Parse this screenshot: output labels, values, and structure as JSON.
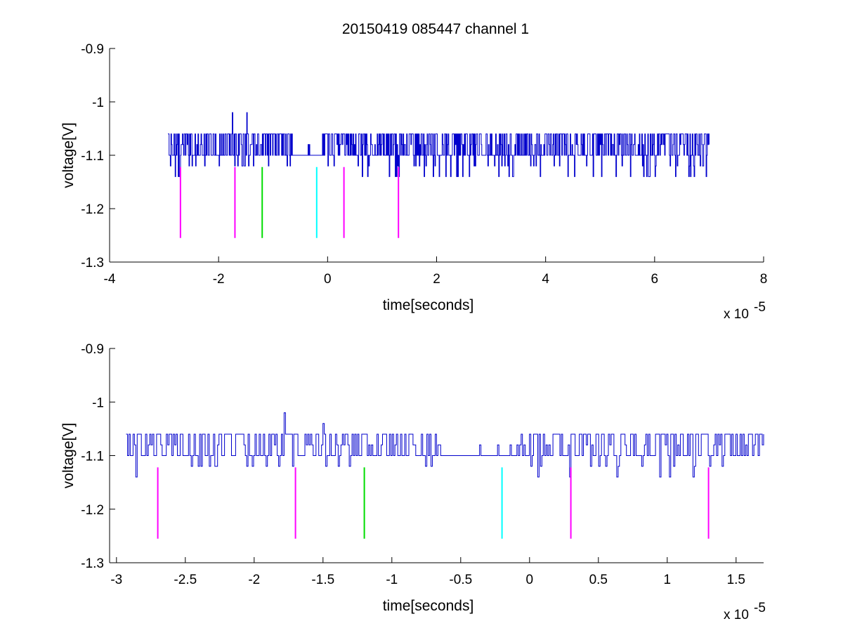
{
  "figure": {
    "title": "20150419 085447 channel 1"
  },
  "chart_data": [
    {
      "type": "line",
      "xlabel": "time[seconds]",
      "ylabel": "voltage[V]",
      "x_multiplier_label": "x 10",
      "x_multiplier_exp": "-5",
      "xlim": [
        -4,
        8
      ],
      "ylim": [
        -1.3,
        -0.9
      ],
      "xticks": [
        -4,
        -2,
        0,
        2,
        4,
        6,
        8
      ],
      "xtick_labels": [
        "-4",
        "-2",
        "0",
        "2",
        "4",
        "6",
        "8"
      ],
      "yticks": [
        -1.3,
        -1.2,
        -1.1,
        -1.0,
        -0.9
      ],
      "ytick_labels": [
        "-1.3",
        "-1.2",
        "-1.1",
        "-1",
        "-0.9"
      ],
      "grid": false,
      "series": [
        {
          "color": "#0000cc",
          "x_range": [
            -2.93,
            7.0
          ],
          "levels": [
            -1.14,
            -1.12,
            -1.1,
            -1.08,
            -1.06
          ],
          "description_levels": "digitized noise trace toggling mostly between -1.1 and -1.06 with occasional dips to -1.14",
          "spikes": [
            {
              "x": -1.75,
              "y": -1.02
            },
            {
              "x": -1.48,
              "y": -1.02
            }
          ]
        }
      ],
      "markers": [
        {
          "x": -2.7,
          "y_top": -1.122,
          "y_bottom": -1.255,
          "color": "#ff00ff"
        },
        {
          "x": -1.7,
          "y_top": -1.122,
          "y_bottom": -1.255,
          "color": "#ff00ff"
        },
        {
          "x": -1.2,
          "y_top": -1.122,
          "y_bottom": -1.255,
          "color": "#00dd00"
        },
        {
          "x": -0.2,
          "y_top": -1.122,
          "y_bottom": -1.255,
          "color": "#00ffff"
        },
        {
          "x": 0.3,
          "y_top": -1.122,
          "y_bottom": -1.255,
          "color": "#ff00ff"
        },
        {
          "x": 1.3,
          "y_top": -1.122,
          "y_bottom": -1.255,
          "color": "#ff00ff"
        }
      ]
    },
    {
      "type": "line",
      "xlabel": "time[seconds]",
      "ylabel": "voltage[V]",
      "x_multiplier_label": "x 10",
      "x_multiplier_exp": "-5",
      "xlim": [
        -3.05,
        1.7
      ],
      "ylim": [
        -1.3,
        -0.9
      ],
      "xticks": [
        -3,
        -2.5,
        -2,
        -1.5,
        -1,
        -0.5,
        0,
        0.5,
        1,
        1.5
      ],
      "xtick_labels": [
        "-3",
        "-2.5",
        "-2",
        "-1.5",
        "-1",
        "-0.5",
        "0",
        "0.5",
        "1",
        "1.5"
      ],
      "yticks": [
        -1.3,
        -1.2,
        -1.1,
        -1.0,
        -0.9
      ],
      "ytick_labels": [
        "-1.3",
        "-1.2",
        "-1.1",
        "-1",
        "-0.9"
      ],
      "grid": false,
      "series": [
        {
          "color": "#0000cc",
          "x_range": [
            -2.93,
            1.7
          ],
          "levels": [
            -1.14,
            -1.12,
            -1.1,
            -1.08,
            -1.06
          ],
          "description_levels": "zoomed view of the same trace",
          "spikes": [
            {
              "x": -1.78,
              "y": -1.02
            },
            {
              "x": -1.5,
              "y": -1.04
            }
          ]
        }
      ],
      "markers": [
        {
          "x": -2.7,
          "y_top": -1.122,
          "y_bottom": -1.255,
          "color": "#ff00ff"
        },
        {
          "x": -1.7,
          "y_top": -1.122,
          "y_bottom": -1.255,
          "color": "#ff00ff"
        },
        {
          "x": -1.2,
          "y_top": -1.122,
          "y_bottom": -1.255,
          "color": "#00dd00"
        },
        {
          "x": -0.2,
          "y_top": -1.122,
          "y_bottom": -1.255,
          "color": "#00ffff"
        },
        {
          "x": 0.3,
          "y_top": -1.122,
          "y_bottom": -1.255,
          "color": "#ff00ff"
        },
        {
          "x": 1.3,
          "y_top": -1.122,
          "y_bottom": -1.255,
          "color": "#ff00ff"
        }
      ]
    }
  ]
}
